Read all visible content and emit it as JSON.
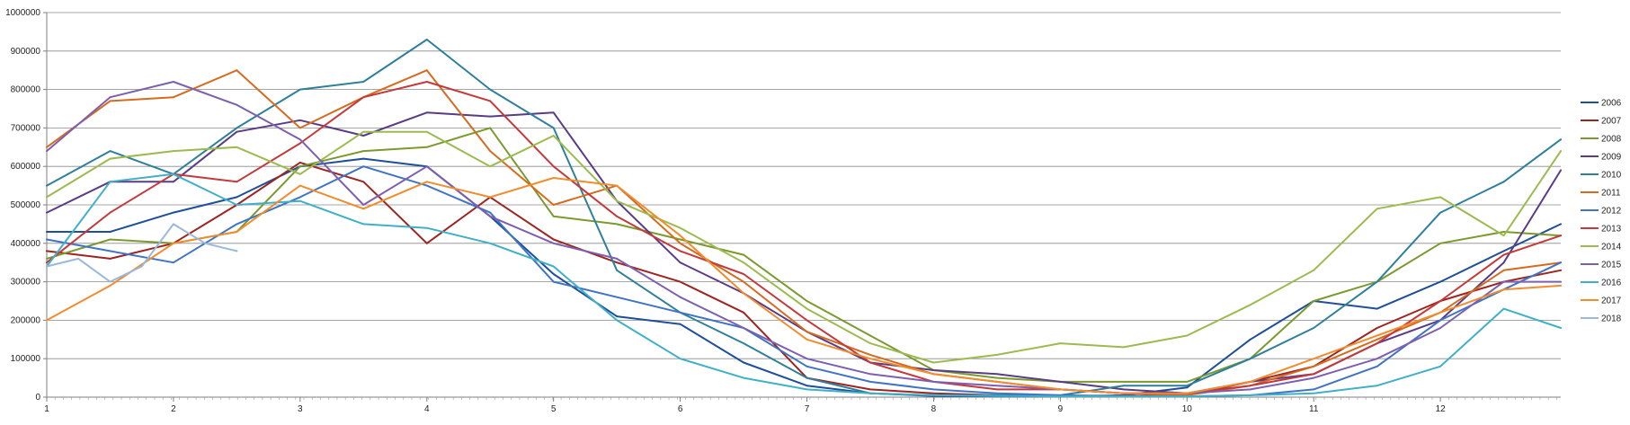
{
  "chart_data": {
    "type": "line",
    "title": "",
    "xlabel": "",
    "ylabel": "",
    "xlim": [
      1,
      12.95
    ],
    "ylim": [
      0,
      1000000
    ],
    "y_ticks": [
      0,
      100000,
      200000,
      300000,
      400000,
      500000,
      600000,
      700000,
      800000,
      900000,
      1000000
    ],
    "y_tick_labels": [
      "0",
      "100000",
      "200000",
      "300000",
      "400000",
      "500000",
      "600000",
      "700000",
      "800000",
      "900000",
      "1000000"
    ],
    "x_ticks": [
      1,
      2,
      3,
      4,
      5,
      6,
      7,
      8,
      9,
      10,
      11,
      12
    ],
    "x_tick_labels": [
      "1",
      "2",
      "3",
      "4",
      "5",
      "6",
      "7",
      "8",
      "9",
      "10",
      "11",
      "12"
    ],
    "grid": "horizontal",
    "legend_position": "right",
    "x_unit": "month",
    "series": [
      {
        "name": "2006",
        "color": "#1F4E9A",
        "x": [
          1,
          1.5,
          2,
          2.5,
          3,
          3.5,
          4,
          4.5,
          5,
          5.5,
          6,
          6.5,
          7,
          7.5,
          8,
          8.5,
          9,
          9.5,
          10,
          10.5,
          11,
          11.5,
          12,
          12.5,
          12.95
        ],
        "values": [
          430000,
          430000,
          480000,
          520000,
          600000,
          620000,
          600000,
          470000,
          320000,
          210000,
          190000,
          90000,
          30000,
          10000,
          3000,
          2000,
          2000,
          5000,
          25000,
          150000,
          250000,
          230000,
          300000,
          380000,
          450000
        ]
      },
      {
        "name": "2007",
        "color": "#9E2420",
        "x": [
          1,
          1.5,
          2,
          2.5,
          3,
          3.5,
          4,
          4.5,
          5,
          5.5,
          6,
          6.5,
          7,
          7.5,
          8,
          8.5,
          9,
          9.5,
          10,
          10.5,
          11,
          11.5,
          12,
          12.5,
          12.95
        ],
        "values": [
          380000,
          360000,
          400000,
          500000,
          610000,
          560000,
          400000,
          520000,
          410000,
          350000,
          300000,
          220000,
          50000,
          20000,
          10000,
          5000,
          3000,
          3000,
          5000,
          40000,
          80000,
          180000,
          250000,
          300000,
          330000
        ]
      },
      {
        "name": "2008",
        "color": "#7A9A2E",
        "x": [
          1,
          1.5,
          2,
          2.5,
          3,
          3.5,
          4,
          4.5,
          5,
          5.5,
          6,
          6.5,
          7,
          7.5,
          8,
          8.5,
          9,
          9.5,
          10,
          10.5,
          11,
          11.5,
          12,
          12.5,
          12.95
        ],
        "values": [
          360000,
          410000,
          400000,
          430000,
          600000,
          640000,
          650000,
          700000,
          470000,
          450000,
          410000,
          370000,
          250000,
          160000,
          70000,
          50000,
          40000,
          40000,
          40000,
          100000,
          250000,
          300000,
          400000,
          430000,
          420000
        ]
      },
      {
        "name": "2009",
        "color": "#5A3C86",
        "x": [
          1,
          1.5,
          2,
          2.5,
          3,
          3.5,
          4,
          4.5,
          5,
          5.5,
          6,
          6.5,
          7,
          7.5,
          8,
          8.5,
          9,
          9.5,
          10,
          10.5,
          11,
          11.5,
          12,
          12.5,
          12.95
        ],
        "values": [
          480000,
          560000,
          560000,
          690000,
          720000,
          680000,
          740000,
          730000,
          740000,
          510000,
          350000,
          270000,
          170000,
          90000,
          70000,
          60000,
          40000,
          20000,
          10000,
          40000,
          60000,
          140000,
          200000,
          350000,
          590000
        ]
      },
      {
        "name": "2010",
        "color": "#2E7F9C",
        "x": [
          1,
          1.5,
          2,
          2.5,
          3,
          3.5,
          4,
          4.5,
          5,
          5.5,
          6,
          6.5,
          7,
          7.5,
          8,
          8.5,
          9,
          9.5,
          10,
          10.5,
          11,
          11.5,
          12,
          12.5,
          12.95
        ],
        "values": [
          550000,
          640000,
          580000,
          700000,
          800000,
          820000,
          930000,
          800000,
          700000,
          330000,
          220000,
          140000,
          50000,
          10000,
          5000,
          5000,
          5000,
          30000,
          30000,
          100000,
          180000,
          300000,
          480000,
          560000,
          670000
        ]
      },
      {
        "name": "2011",
        "color": "#D56B1E",
        "x": [
          1,
          1.5,
          2,
          2.5,
          3,
          3.5,
          4,
          4.5,
          5,
          5.5,
          6,
          6.5,
          7,
          7.5,
          8,
          8.5,
          9,
          9.5,
          10,
          10.5,
          11,
          11.5,
          12,
          12.5,
          12.95
        ],
        "values": [
          650000,
          770000,
          780000,
          850000,
          700000,
          780000,
          850000,
          640000,
          500000,
          550000,
          400000,
          300000,
          170000,
          110000,
          60000,
          40000,
          20000,
          10000,
          5000,
          30000,
          80000,
          150000,
          220000,
          330000,
          350000
        ]
      },
      {
        "name": "2012",
        "color": "#3F74C4",
        "x": [
          1,
          1.5,
          2,
          2.5,
          3,
          3.5,
          4,
          4.5,
          5,
          5.5,
          6,
          6.5,
          7,
          7.5,
          8,
          8.5,
          9,
          9.5,
          10,
          10.5,
          11,
          11.5,
          12,
          12.5,
          12.95
        ],
        "values": [
          410000,
          380000,
          350000,
          450000,
          520000,
          600000,
          550000,
          480000,
          300000,
          260000,
          220000,
          180000,
          80000,
          40000,
          20000,
          10000,
          5000,
          3000,
          2000,
          5000,
          20000,
          80000,
          200000,
          280000,
          350000
        ]
      },
      {
        "name": "2013",
        "color": "#C4393A",
        "x": [
          1,
          1.5,
          2,
          2.5,
          3,
          3.5,
          4,
          4.5,
          5,
          5.5,
          6,
          6.5,
          7,
          7.5,
          8,
          8.5,
          9,
          9.5,
          10,
          10.5,
          11,
          11.5,
          12,
          12.5,
          12.95
        ],
        "values": [
          350000,
          480000,
          580000,
          560000,
          660000,
          780000,
          820000,
          770000,
          600000,
          470000,
          380000,
          320000,
          200000,
          90000,
          40000,
          20000,
          20000,
          10000,
          10000,
          30000,
          60000,
          140000,
          250000,
          370000,
          420000
        ]
      },
      {
        "name": "2014",
        "color": "#9BBB4F",
        "x": [
          1,
          1.5,
          2,
          2.5,
          3,
          3.5,
          4,
          4.5,
          5,
          5.5,
          6,
          6.5,
          7,
          7.5,
          8,
          8.5,
          9,
          9.5,
          10,
          10.5,
          11,
          11.5,
          12,
          12.5,
          12.95
        ],
        "values": [
          520000,
          620000,
          640000,
          650000,
          580000,
          690000,
          690000,
          600000,
          680000,
          510000,
          440000,
          350000,
          230000,
          140000,
          90000,
          110000,
          140000,
          130000,
          160000,
          240000,
          330000,
          490000,
          520000,
          420000,
          640000
        ]
      },
      {
        "name": "2015",
        "color": "#7C5FB0",
        "x": [
          1,
          1.5,
          2,
          2.5,
          3,
          3.5,
          4,
          4.5,
          5,
          5.5,
          6,
          6.5,
          7,
          7.5,
          8,
          8.5,
          9,
          9.5,
          10,
          10.5,
          11,
          11.5,
          12,
          12.5,
          12.95
        ],
        "values": [
          640000,
          780000,
          820000,
          760000,
          670000,
          500000,
          600000,
          470000,
          400000,
          360000,
          260000,
          180000,
          100000,
          60000,
          40000,
          30000,
          20000,
          10000,
          10000,
          20000,
          50000,
          100000,
          180000,
          300000,
          300000
        ]
      },
      {
        "name": "2016",
        "color": "#3FB0C6",
        "x": [
          1,
          1.5,
          2,
          2.5,
          3,
          3.5,
          4,
          4.5,
          5,
          5.5,
          6,
          6.5,
          7,
          7.5,
          8,
          8.5,
          9,
          9.5,
          10,
          10.5,
          11,
          11.5,
          12,
          12.5,
          12.95
        ],
        "values": [
          340000,
          560000,
          580000,
          500000,
          510000,
          450000,
          440000,
          400000,
          340000,
          200000,
          100000,
          50000,
          20000,
          10000,
          5000,
          3000,
          2000,
          2000,
          2000,
          5000,
          10000,
          30000,
          80000,
          230000,
          180000
        ]
      },
      {
        "name": "2017",
        "color": "#F18C2E",
        "x": [
          1,
          1.5,
          2,
          2.5,
          3,
          3.5,
          4,
          4.5,
          5,
          5.5,
          6,
          6.5,
          7,
          7.5,
          8,
          8.5,
          9,
          9.5,
          10,
          10.5,
          11,
          11.5,
          12,
          12.5,
          12.95
        ],
        "values": [
          200000,
          290000,
          400000,
          430000,
          550000,
          490000,
          560000,
          520000,
          570000,
          550000,
          420000,
          270000,
          150000,
          100000,
          60000,
          40000,
          20000,
          10000,
          10000,
          40000,
          100000,
          160000,
          220000,
          280000,
          290000
        ]
      },
      {
        "name": "2018",
        "color": "#9AB8D8",
        "x": [
          1,
          1.25,
          1.5,
          1.75,
          2,
          2.25,
          2.5
        ],
        "values": [
          340000,
          360000,
          300000,
          340000,
          450000,
          400000,
          380000
        ]
      }
    ]
  }
}
